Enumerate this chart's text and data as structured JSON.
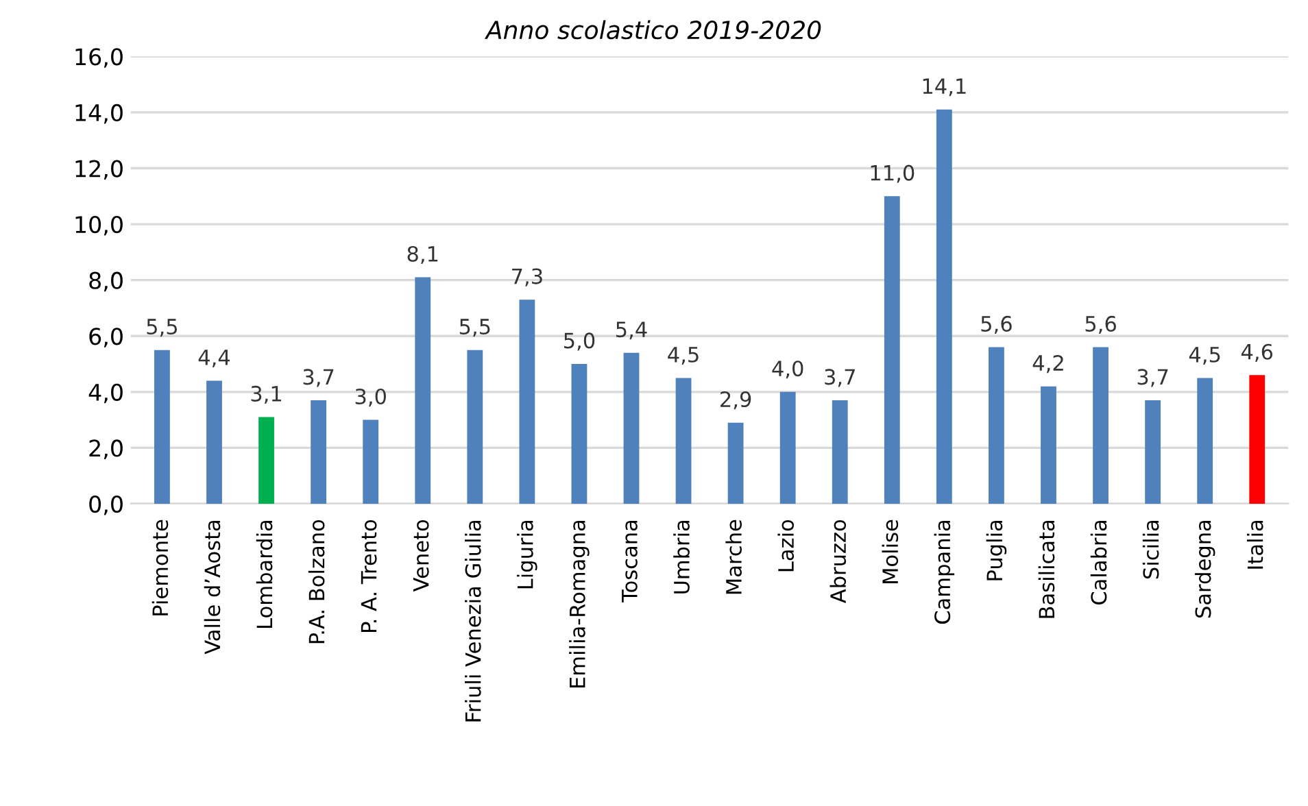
{
  "chart_data": {
    "type": "bar",
    "title": "Anno scolastico 2019-2020",
    "categories": [
      "Piemonte",
      "Valle d’Aosta",
      "Lombardia",
      "P.A. Bolzano",
      "P. A. Trento",
      "Veneto",
      "Friuli Venezia Giulia",
      "Liguria",
      "Emilia-Romagna",
      "Toscana",
      "Umbria",
      "Marche",
      "Lazio",
      "Abruzzo",
      "Molise",
      "Campania",
      "Puglia",
      "Basilicata",
      "Calabria",
      "Sicilia",
      "Sardegna",
      "Italia"
    ],
    "values": [
      5.5,
      4.4,
      3.1,
      3.7,
      3.0,
      8.1,
      5.5,
      7.3,
      5.0,
      5.4,
      4.5,
      2.9,
      4.0,
      3.7,
      11.0,
      14.1,
      5.6,
      4.2,
      5.6,
      3.7,
      4.5,
      4.6
    ],
    "value_labels": [
      "5,5",
      "4,4",
      "3,1",
      "3,7",
      "3,0",
      "8,1",
      "5,5",
      "7,3",
      "5,0",
      "5,4",
      "4,5",
      "2,9",
      "4,0",
      "3,7",
      "11,0",
      "14,1",
      "5,6",
      "4,2",
      "5,6",
      "3,7",
      "4,5",
      "4,6"
    ],
    "colors": [
      "#4f81bd",
      "#4f81bd",
      "#00b050",
      "#4f81bd",
      "#4f81bd",
      "#4f81bd",
      "#4f81bd",
      "#4f81bd",
      "#4f81bd",
      "#4f81bd",
      "#4f81bd",
      "#4f81bd",
      "#4f81bd",
      "#4f81bd",
      "#4f81bd",
      "#4f81bd",
      "#4f81bd",
      "#4f81bd",
      "#4f81bd",
      "#4f81bd",
      "#4f81bd",
      "#ff0000"
    ],
    "ylim": [
      0,
      16
    ],
    "yticks": [
      {
        "value": 0,
        "label": "0,0"
      },
      {
        "value": 2,
        "label": "2,0"
      },
      {
        "value": 4,
        "label": "4,0"
      },
      {
        "value": 6,
        "label": "6,0"
      },
      {
        "value": 8,
        "label": "8,0"
      },
      {
        "value": 10,
        "label": "10,0"
      },
      {
        "value": 12,
        "label": "12,0"
      },
      {
        "value": 14,
        "label": "14,0"
      },
      {
        "value": 16,
        "label": "16,0"
      }
    ],
    "grid": "y",
    "legend": false
  }
}
